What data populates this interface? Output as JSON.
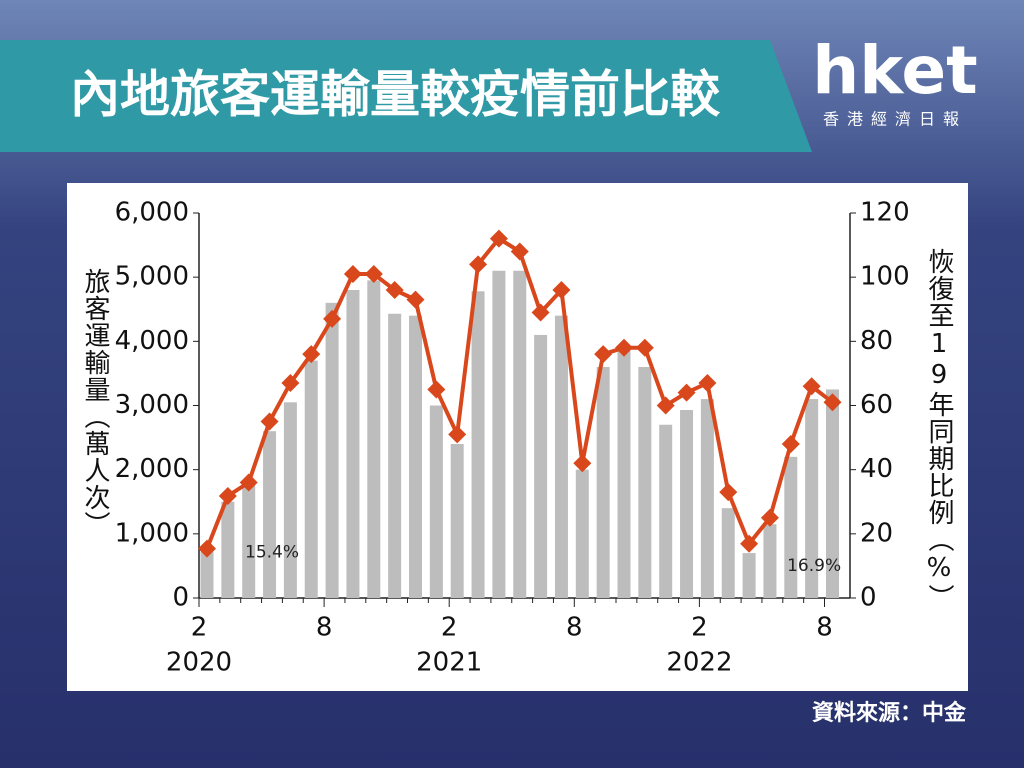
{
  "header": {
    "title": "內地旅客運輸量較疫情前比較",
    "logo": "hket",
    "logo_subtitle": "香港經濟日報"
  },
  "chart_data": {
    "type": "combo",
    "categories": [
      "2",
      null,
      null,
      null,
      null,
      null,
      "8",
      null,
      null,
      null,
      null,
      null,
      "2",
      null,
      null,
      null,
      null,
      null,
      "8",
      null,
      null,
      null,
      null,
      null,
      "2",
      null,
      null,
      null,
      null,
      null,
      "8"
    ],
    "years": [
      "2020",
      null,
      null,
      null,
      null,
      null,
      null,
      null,
      null,
      null,
      null,
      null,
      "2021",
      null,
      null,
      null,
      null,
      null,
      null,
      null,
      null,
      null,
      null,
      null,
      "2022",
      null,
      null,
      null,
      null,
      null,
      null
    ],
    "y_label": "旅客運輸量（萬人次）",
    "y2_label": "恢復至19年同期比例（%）",
    "ylim": [
      0,
      6000
    ],
    "yticks": [
      0,
      {
        "value": 1000,
        "label": "1,000"
      },
      {
        "value": 2000,
        "label": "2,000"
      },
      {
        "value": 3000,
        "label": "3,000"
      },
      {
        "value": 4000,
        "label": "4,000"
      },
      {
        "value": 5000,
        "label": "5,000"
      },
      {
        "value": 6000,
        "label": "6,000"
      }
    ],
    "y2lim": [
      0,
      120
    ],
    "y2ticks": [
      0,
      20,
      40,
      60,
      80,
      100,
      120
    ],
    "series": [
      {
        "type": "bar",
        "color": "#bdbdbd",
        "values": [
          720,
          1500,
          1800,
          2600,
          3050,
          3700,
          4600,
          4800,
          4950,
          4430,
          4400,
          3000,
          2400,
          4780,
          5100,
          5100,
          4100,
          4400,
          2000,
          3600,
          3850,
          3600,
          2700,
          2930,
          3100,
          1400,
          700,
          1150,
          2200,
          3100,
          3250
        ]
      },
      {
        "type": "line",
        "axis": "y2",
        "color": "#d9481c",
        "values": [
          15.4,
          31.8,
          36,
          55,
          67,
          76,
          87,
          101,
          101,
          96,
          93,
          65,
          51,
          104,
          112,
          108,
          89,
          96,
          42,
          76,
          78,
          78,
          60,
          64,
          67,
          33,
          16.9,
          25,
          48,
          66,
          61
        ],
        "value_labels": [
          "15.4%",
          null,
          null,
          null,
          null,
          null,
          null,
          null,
          null,
          null,
          null,
          null,
          null,
          null,
          null,
          null,
          null,
          null,
          null,
          null,
          null,
          null,
          null,
          null,
          null,
          null,
          "16.9%",
          null,
          null,
          null,
          null
        ]
      }
    ]
  },
  "source": "資料來源：中金"
}
